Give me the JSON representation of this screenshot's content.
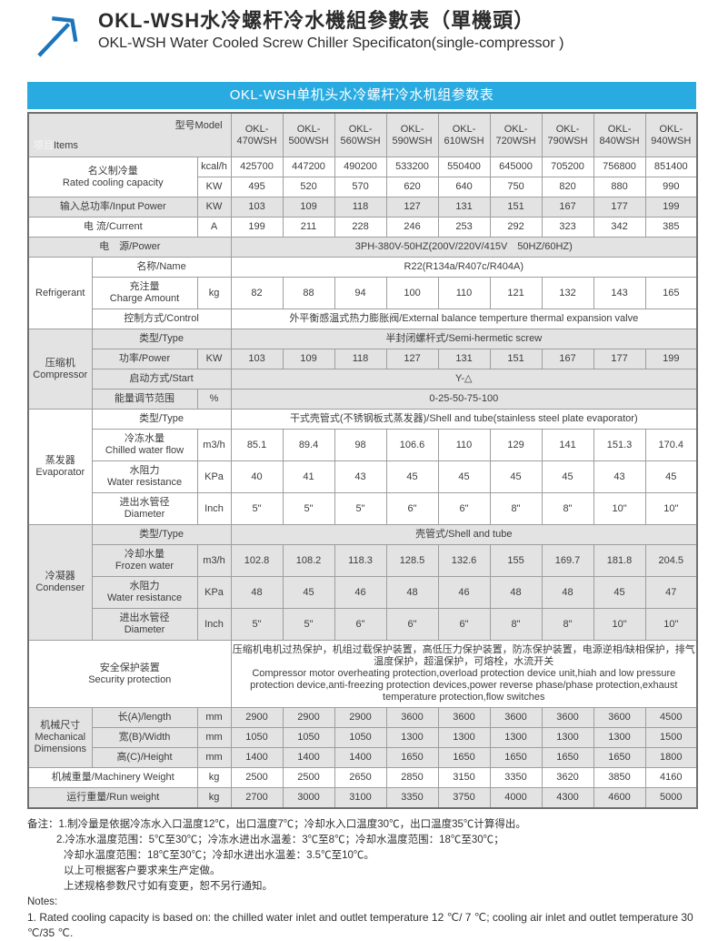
{
  "page": {
    "title_zh": "OKL-WSH水冷螺杆冷水機組參數表（單機頭）",
    "title_en": "OKL-WSH Water Cooled Screw Chiller Specificaton(single-compressor )",
    "banner": "OKL-WSH单机头水冷螺杆冷水机组参数表"
  },
  "colors": {
    "banner_bg": "#29abe2",
    "band_gray": "#e3e3e3",
    "border": "#9e9e9e",
    "arrow_blue": "#1b75bc"
  },
  "icons": {
    "logo": "arrow-up-right-icon"
  },
  "table": {
    "header": {
      "items_zh": "项目",
      "items_en": "Items",
      "model_label": "型号Model",
      "models": [
        "OKL-\n470WSH",
        "OKL-\n500WSH",
        "OKL-\n560WSH",
        "OKL-\n590WSH",
        "OKL-\n610WSH",
        "OKL-\n720WSH",
        "OKL-\n790WSH",
        "OKL-\n840WSH",
        "OKL-\n940WSH"
      ]
    },
    "rows": [
      {
        "band": "white",
        "cells": [
          {
            "t": "名义制冷量\nRated cooling capacity",
            "cs": 2,
            "rs": 2,
            "cls": "label",
            "n": "row-label-rated-cooling-capacity"
          },
          {
            "t": "kcal/h",
            "cls": "unit"
          },
          "425700",
          "447200",
          "490200",
          "533200",
          "550400",
          "645000",
          "705200",
          "756800",
          "851400"
        ]
      },
      {
        "band": "white",
        "cells": [
          {
            "t": "KW",
            "cls": "unit"
          },
          "495",
          "520",
          "570",
          "620",
          "640",
          "750",
          "820",
          "880",
          "990"
        ]
      },
      {
        "band": "gray",
        "cells": [
          {
            "t": "输入总功率/Input Power",
            "cs": 2,
            "cls": "label",
            "n": "row-label-input-power"
          },
          {
            "t": "KW",
            "cls": "unit"
          },
          "103",
          "109",
          "118",
          "127",
          "131",
          "151",
          "167",
          "177",
          "199"
        ]
      },
      {
        "band": "white",
        "cells": [
          {
            "t": "电 流/Current",
            "cs": 2,
            "cls": "label",
            "n": "row-label-current"
          },
          {
            "t": "A",
            "cls": "unit"
          },
          "199",
          "211",
          "228",
          "246",
          "253",
          "292",
          "323",
          "342",
          "385"
        ]
      },
      {
        "band": "gray",
        "cells": [
          {
            "t": "电　源/Power",
            "cs": 3,
            "cls": "label",
            "n": "row-label-power-supply"
          },
          {
            "t": "3PH-380V-50HZ(200V/220V/415V　50HZ/60HZ)",
            "cs": 9,
            "cls": "span"
          }
        ]
      },
      {
        "band": "white",
        "cells": [
          {
            "t": "Refrigerant",
            "rs": 3,
            "cls": "group",
            "n": "group-label-refrigerant"
          },
          {
            "t": "名称/Name",
            "cs": 2,
            "cls": "label"
          },
          {
            "t": "R22(R134a/R407c/R404A)",
            "cs": 9,
            "cls": "span"
          }
        ]
      },
      {
        "band": "white",
        "cells": [
          {
            "t": "充注量\nCharge Amount",
            "cls": "label",
            "n": "row-label-charge-amount"
          },
          {
            "t": "kg",
            "cls": "unit"
          },
          "82",
          "88",
          "94",
          "100",
          "110",
          "121",
          "132",
          "143",
          "165"
        ]
      },
      {
        "band": "white",
        "cells": [
          {
            "t": "控制方式/Control",
            "cs": 2,
            "cls": "label",
            "n": "row-label-control"
          },
          {
            "t": "外平衡感温式热力膨胀阀/External balance temperture thermal expansion valve",
            "cs": 9,
            "cls": "span"
          }
        ]
      },
      {
        "band": "gray",
        "cells": [
          {
            "t": "压缩机\nCompressor",
            "rs": 4,
            "cls": "group",
            "n": "group-label-compressor"
          },
          {
            "t": "类型/Type",
            "cs": 2,
            "cls": "label"
          },
          {
            "t": "半封闭螺杆式/Semi-hermetic screw",
            "cs": 9,
            "cls": "span"
          }
        ]
      },
      {
        "band": "gray",
        "cells": [
          {
            "t": "功率/Power",
            "cls": "label",
            "n": "row-label-compressor-power"
          },
          {
            "t": "KW",
            "cls": "unit"
          },
          "103",
          "109",
          "118",
          "127",
          "131",
          "151",
          "167",
          "177",
          "199"
        ]
      },
      {
        "band": "gray",
        "cells": [
          {
            "t": "启动方式/Start",
            "cs": 2,
            "cls": "label",
            "n": "row-label-start"
          },
          {
            "t": "Y-△",
            "cs": 9,
            "cls": "span"
          }
        ]
      },
      {
        "band": "gray",
        "cells": [
          {
            "t": "能量调节范围",
            "cls": "label",
            "n": "row-label-energy-regulation"
          },
          {
            "t": "%",
            "cls": "unit"
          },
          {
            "t": "0-25-50-75-100",
            "cs": 9,
            "cls": "span"
          }
        ]
      },
      {
        "band": "white",
        "cells": [
          {
            "t": "蒸发器\nEvaporator",
            "rs": 4,
            "cls": "group",
            "n": "group-label-evaporator"
          },
          {
            "t": "类型/Type",
            "cs": 2,
            "cls": "label"
          },
          {
            "t": "干式壳管式(不锈钢板式蒸发器)/Shell and tube(stainless steel plate evaporator)",
            "cs": 9,
            "cls": "span"
          }
        ]
      },
      {
        "band": "white",
        "cells": [
          {
            "t": "冷冻水量\nChilled water flow",
            "cls": "label",
            "n": "row-label-chilled-water-flow"
          },
          {
            "t": "m3/h",
            "cls": "unit"
          },
          "85.1",
          "89.4",
          "98",
          "106.6",
          "110",
          "129",
          "141",
          "151.3",
          "170.4"
        ]
      },
      {
        "band": "white",
        "cells": [
          {
            "t": "水阻力\nWater resistance",
            "cls": "label",
            "n": "row-label-evap-water-resistance"
          },
          {
            "t": "KPa",
            "cls": "unit"
          },
          "40",
          "41",
          "43",
          "45",
          "45",
          "45",
          "45",
          "43",
          "45"
        ]
      },
      {
        "band": "white",
        "cells": [
          {
            "t": "进出水管径\nDiameter",
            "cls": "label",
            "n": "row-label-evap-diameter"
          },
          {
            "t": "Inch",
            "cls": "unit"
          },
          "5\"",
          "5\"",
          "5\"",
          "6\"",
          "6\"",
          "8\"",
          "8\"",
          "10\"",
          "10\""
        ]
      },
      {
        "band": "gray",
        "cells": [
          {
            "t": "冷凝器\nCondenser",
            "rs": 4,
            "cls": "group",
            "n": "group-label-condenser"
          },
          {
            "t": "类型/Type",
            "cs": 2,
            "cls": "label"
          },
          {
            "t": "壳管式/Shell and tube",
            "cs": 9,
            "cls": "span"
          }
        ]
      },
      {
        "band": "gray",
        "cells": [
          {
            "t": "冷却水量\nFrozen water",
            "cls": "label",
            "n": "row-label-frozen-water"
          },
          {
            "t": "m3/h",
            "cls": "unit"
          },
          "102.8",
          "108.2",
          "118.3",
          "128.5",
          "132.6",
          "155",
          "169.7",
          "181.8",
          "204.5"
        ]
      },
      {
        "band": "gray",
        "cells": [
          {
            "t": "水阻力\nWater resistance",
            "cls": "label",
            "n": "row-label-cond-water-resistance"
          },
          {
            "t": "KPa",
            "cls": "unit"
          },
          "48",
          "45",
          "46",
          "48",
          "46",
          "48",
          "48",
          "45",
          "47"
        ]
      },
      {
        "band": "gray",
        "cells": [
          {
            "t": "进出水管径\nDiameter",
            "cls": "label",
            "n": "row-label-cond-diameter"
          },
          {
            "t": "Inch",
            "cls": "unit"
          },
          "5\"",
          "5\"",
          "6\"",
          "6\"",
          "6\"",
          "8\"",
          "8\"",
          "10\"",
          "10\""
        ]
      },
      {
        "band": "white",
        "cells": [
          {
            "t": "安全保护装置\nSecurity protection",
            "cs": 3,
            "cls": "label",
            "n": "row-label-security-protection"
          },
          {
            "t": "压缩机电机过热保护，机组过载保护装置，高低压力保护装置，防冻保护装置，电源逆相/缺相保护，排气温度保护，超温保护，可熔栓，水流开关\nCompressor motor overheating protection,overload protection device unit,hiah and low pressure protection device,anti-freezing protection devices,power reverse phase/phase protection,exhaust temperature protection,flow switches",
            "cs": 9,
            "cls": "security",
            "n": "security-protection-text"
          }
        ]
      },
      {
        "band": "gray",
        "cells": [
          {
            "t": "机械尺寸\nMechanical\nDimensions",
            "rs": 3,
            "cls": "group",
            "n": "group-label-mechanical-dimensions"
          },
          {
            "t": "长(A)/length",
            "cls": "label"
          },
          {
            "t": "mm",
            "cls": "unit"
          },
          "2900",
          "2900",
          "2900",
          "3600",
          "3600",
          "3600",
          "3600",
          "3600",
          "4500"
        ]
      },
      {
        "band": "gray",
        "cells": [
          {
            "t": "宽(B)/Width",
            "cls": "label"
          },
          {
            "t": "mm",
            "cls": "unit"
          },
          "1050",
          "1050",
          "1050",
          "1300",
          "1300",
          "1300",
          "1300",
          "1300",
          "1500"
        ]
      },
      {
        "band": "gray",
        "cells": [
          {
            "t": "高(C)/Height",
            "cls": "label"
          },
          {
            "t": "mm",
            "cls": "unit"
          },
          "1400",
          "1400",
          "1400",
          "1650",
          "1650",
          "1650",
          "1650",
          "1650",
          "1800"
        ]
      },
      {
        "band": "white",
        "cells": [
          {
            "t": "机械重量/Machinery Weight",
            "cs": 2,
            "cls": "label",
            "n": "row-label-machinery-weight"
          },
          {
            "t": "kg",
            "cls": "unit"
          },
          "2500",
          "2500",
          "2650",
          "2850",
          "3150",
          "3350",
          "3620",
          "3850",
          "4160"
        ]
      },
      {
        "band": "gray",
        "cells": [
          {
            "t": "运行重量/Run weight",
            "cs": 2,
            "cls": "label",
            "n": "row-label-run-weight"
          },
          {
            "t": "kg",
            "cls": "unit"
          },
          "2700",
          "3000",
          "3100",
          "3350",
          "3750",
          "4000",
          "4300",
          "4600",
          "5000"
        ]
      }
    ]
  },
  "notes": {
    "zh": [
      "备注：1.制冷量是依据冷冻水入口温度12℃，出口温度7℃；冷却水入口温度30℃，出口温度35℃计算得出。",
      "2.冷冻水温度范围：5℃至30℃；冷冻水进出水温差：3℃至8℃；冷却水温度范围：18℃至30℃；",
      "冷却水温度范围：18℃至30℃；冷却水进出水温差：3.5℃至10℃。",
      "以上可根据客户要求来生产定做。",
      "上述规格参数尺寸如有变更，恕不另行通知。"
    ],
    "label_en": "Notes:",
    "en": "1. Rated cooling capacity is based on: the chilled water inlet and outlet temperature 12 ℃/ 7 ℃; cooling air inlet and outlet temperature 30 ℃/35 ℃."
  }
}
